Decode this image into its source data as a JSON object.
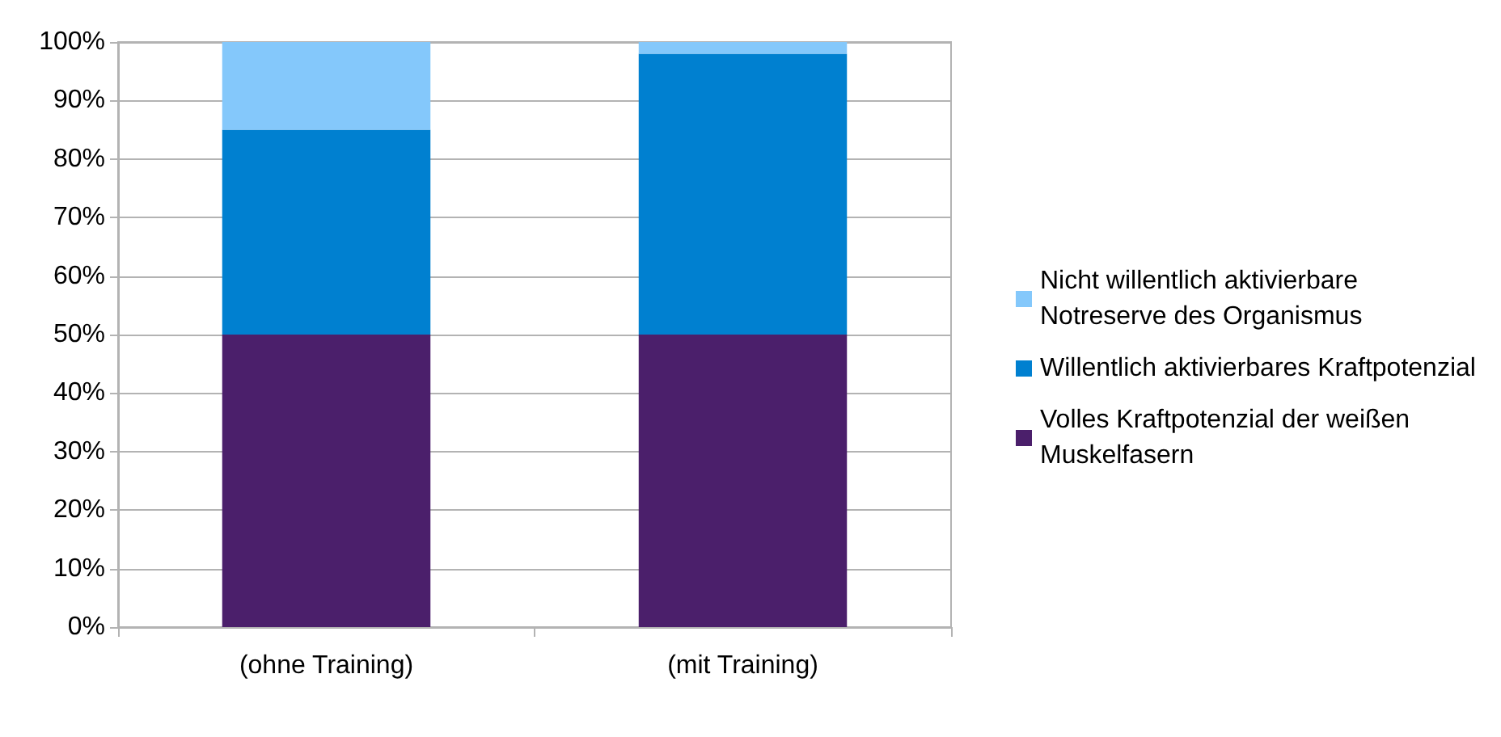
{
  "chart_data": {
    "type": "bar",
    "stacked": true,
    "categories": [
      "(ohne Training)",
      "(mit Training)"
    ],
    "series": [
      {
        "name": "Volles Kraftpotenzial der weißen Muskelfasern",
        "color": "#4b1f6b",
        "values": [
          50,
          50
        ]
      },
      {
        "name": "Willentlich aktivierbares Kraftpotenzial",
        "color": "#0080d0",
        "values": [
          35,
          48
        ]
      },
      {
        "name": "Nicht willentlich aktivierbare Notreserve des Organismus",
        "color": "#84c8fb",
        "values": [
          15,
          2
        ]
      }
    ],
    "ylim": [
      0,
      100
    ],
    "yticks": [
      {
        "value": 0,
        "label": "0%"
      },
      {
        "value": 10,
        "label": "10%"
      },
      {
        "value": 20,
        "label": "20%"
      },
      {
        "value": 30,
        "label": "30%"
      },
      {
        "value": 40,
        "label": "40%"
      },
      {
        "value": 50,
        "label": "50%"
      },
      {
        "value": 60,
        "label": "60%"
      },
      {
        "value": 70,
        "label": "70%"
      },
      {
        "value": 80,
        "label": "80%"
      },
      {
        "value": 90,
        "label": "90%"
      },
      {
        "value": 100,
        "label": "100%"
      }
    ],
    "grid": "y",
    "legend": "right"
  }
}
